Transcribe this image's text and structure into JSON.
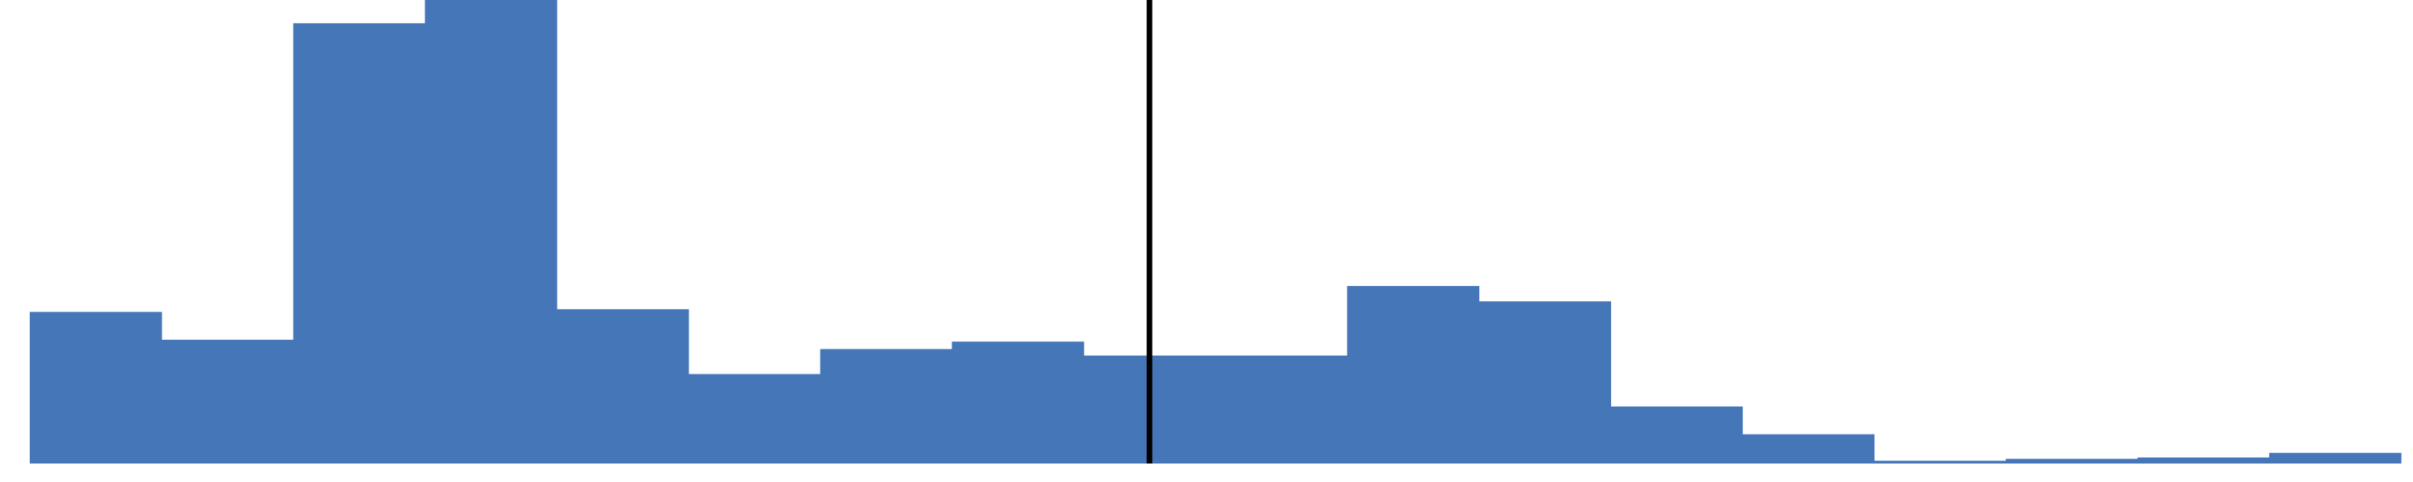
{
  "chart_data": {
    "type": "bar",
    "bar_color": "#4577B8",
    "marker_color": "#000000",
    "background_color": "#ffffff",
    "gridlines": false,
    "axes_visible": false,
    "legend": "none",
    "ylim": [
      0,
      100
    ],
    "values": [
      32.7,
      26.7,
      95.0,
      100,
      33.3,
      19.3,
      24.7,
      26.3,
      23.3,
      23.3,
      38.3,
      35.0,
      12.3,
      6.3,
      0.6,
      1.0,
      1.3,
      2.3
    ],
    "marker_after_bin": 8.5
  }
}
